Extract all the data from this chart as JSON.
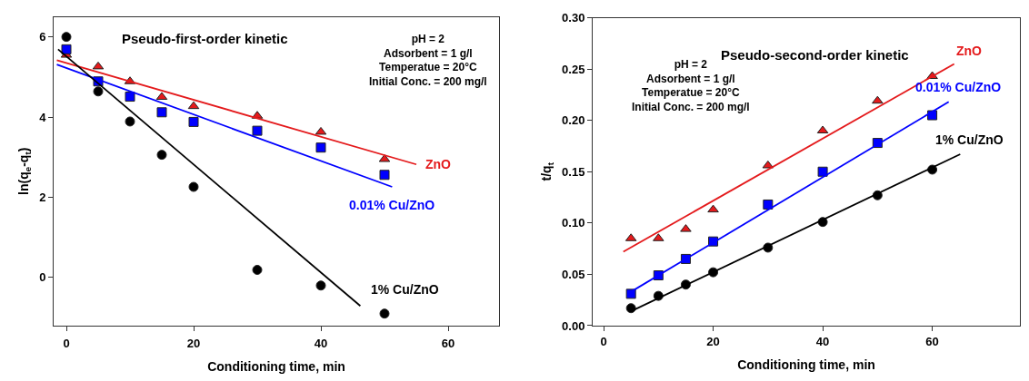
{
  "chart_data": [
    {
      "type": "scatter",
      "title": "Pseudo-first-order kinetic",
      "xlabel": "Conditioning time, min",
      "ylabel": "ln(q$_{e}$-q$_{t}$)",
      "annotations": [
        "pH = 2\nAdsorbent = 1 g/l\nTemperatue = 20°C\nInitial Conc. = 200 mg/l"
      ],
      "xlim": [
        -2,
        68
      ],
      "xticks": [
        0,
        20,
        40,
        60
      ],
      "ylim": [
        -1.2,
        6.5
      ],
      "yticks": [
        0,
        2,
        4,
        6
      ],
      "series": [
        {
          "marker": "triangle",
          "color": "#e41a1c",
          "x": [
            0,
            5,
            10,
            15,
            20,
            30,
            40,
            50
          ],
          "values": [
            5.55,
            5.26,
            4.89,
            4.5,
            4.27,
            4.03,
            3.63,
            2.95
          ]
        },
        {
          "marker": "square",
          "color": "#0000ff",
          "x": [
            0,
            5,
            10,
            15,
            20,
            30,
            40,
            50
          ],
          "values": [
            5.69,
            4.89,
            4.51,
            4.12,
            3.88,
            3.66,
            3.24,
            2.56
          ]
        },
        {
          "marker": "circle",
          "color": "#000000",
          "x": [
            0,
            5,
            10,
            15,
            20,
            30,
            40,
            50
          ],
          "values": [
            6.0,
            4.64,
            3.89,
            3.06,
            2.26,
            0.19,
            -0.2,
            -0.9
          ]
        },
        {
          "type": "line",
          "name": "ZnO",
          "line_style": "solid",
          "color": "#e41a1c",
          "x": [
            -1.5,
            55.0
          ],
          "values": [
            5.42,
            2.82
          ]
        },
        {
          "type": "line",
          "name": "0.01% Cu/ZnO",
          "line_style": "solid",
          "color": "#0000ff",
          "x": [
            -1.5,
            51.2
          ],
          "values": [
            5.31,
            2.26
          ]
        },
        {
          "type": "line",
          "name": "1% Cu/ZnO",
          "line_style": "solid",
          "color": "#000000",
          "x": [
            -1.3,
            46.2
          ],
          "values": [
            5.69,
            -0.71
          ]
        }
      ]
    },
    {
      "type": "scatter",
      "title": "Pseudo-second-order kinetic",
      "xlabel": "Conditioning time, min",
      "ylabel": "t/q$_{t}$",
      "annotations": [
        "pH = 2\nAdsorbent = 1 g/l\nTemperatue = 20°C\nInitial Conc. = 200 mg/l"
      ],
      "xlim": [
        -2,
        76
      ],
      "xticks": [
        0,
        20,
        40,
        60
      ],
      "ylim": [
        0,
        0.3
      ],
      "yticks": [
        {
          "value": 0,
          "label": "0.00"
        },
        {
          "value": 0.05,
          "label": "0.05"
        },
        {
          "value": 0.1,
          "label": "0.10"
        },
        {
          "value": 0.15,
          "label": "0.15"
        },
        {
          "value": 0.2,
          "label": "0.20"
        },
        {
          "value": 0.25,
          "label": "0.25"
        },
        {
          "value": 0.3,
          "label": "0.30"
        }
      ],
      "series": [
        {
          "marker": "triangle",
          "color": "#e41a1c",
          "x": [
            5,
            10,
            15,
            20,
            30,
            40,
            50,
            60
          ],
          "values": [
            0.085,
            0.085,
            0.094,
            0.113,
            0.156,
            0.19,
            0.219,
            0.243
          ]
        },
        {
          "marker": "square",
          "color": "#0000ff",
          "x": [
            5,
            10,
            15,
            20,
            30,
            40,
            50,
            60
          ],
          "values": [
            0.031,
            0.049,
            0.065,
            0.082,
            0.118,
            0.15,
            0.178,
            0.205
          ]
        },
        {
          "marker": "circle",
          "color": "#000000",
          "x": [
            5,
            10,
            15,
            20,
            30,
            40,
            50,
            60
          ],
          "values": [
            0.017,
            0.029,
            0.04,
            0.052,
            0.076,
            0.101,
            0.127,
            0.152
          ]
        },
        {
          "type": "line",
          "name": "ZnO",
          "line_style": "solid",
          "color": "#e41a1c",
          "x": [
            3.6,
            64.0
          ],
          "values": [
            0.072,
            0.255
          ]
        },
        {
          "type": "line",
          "name": "0.01% Cu/ZnO",
          "line_style": "solid",
          "color": "#0000ff",
          "x": [
            5.0,
            63.0
          ],
          "values": [
            0.033,
            0.218
          ]
        },
        {
          "type": "line",
          "name": "1% Cu/ZnO",
          "line_style": "solid",
          "color": "#000000",
          "x": [
            5.0,
            65.1
          ],
          "values": [
            0.014,
            0.167
          ]
        }
      ]
    }
  ]
}
